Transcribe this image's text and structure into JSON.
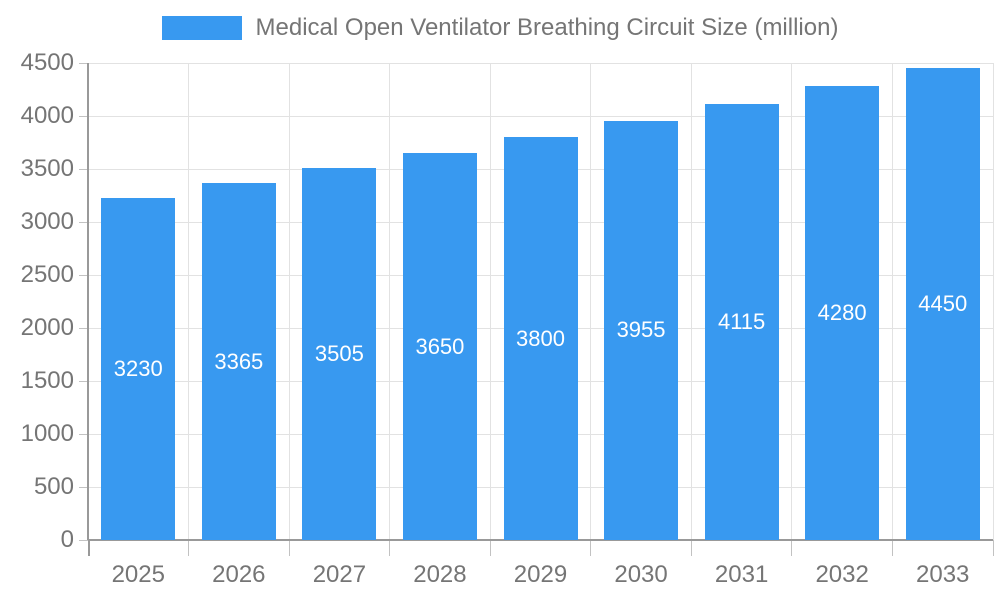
{
  "chart_data": {
    "type": "bar",
    "title": "Medical Open Ventilator Breathing Circuit Size (million)",
    "xlabel": "",
    "ylabel": "",
    "categories": [
      "2025",
      "2026",
      "2027",
      "2028",
      "2029",
      "2030",
      "2031",
      "2032",
      "2033"
    ],
    "series": [
      {
        "name": "Medical Open Ventilator Breathing Circuit Size (million)",
        "values": [
          3230,
          3365,
          3505,
          3650,
          3800,
          3955,
          4115,
          4280,
          4450
        ]
      }
    ],
    "bar_labels": [
      "3230",
      "3365",
      "3505",
      "3650",
      "3800",
      "3955",
      "4115",
      "4280",
      "4450"
    ],
    "ylim": [
      0,
      4500
    ],
    "ytick_step": 500,
    "ytick_labels": [
      "0",
      "500",
      "1000",
      "1500",
      "2000",
      "2500",
      "3000",
      "3500",
      "4000",
      "4500"
    ],
    "grid": true,
    "legend_position": "top"
  },
  "colors": {
    "bar": "#3899F0",
    "bar_label_text": "#ffffff",
    "axis_text": "#757575",
    "gridline": "#e2e2e2",
    "axis_line": "#999999",
    "tick": "#c2c2c2",
    "background": "#ffffff"
  }
}
